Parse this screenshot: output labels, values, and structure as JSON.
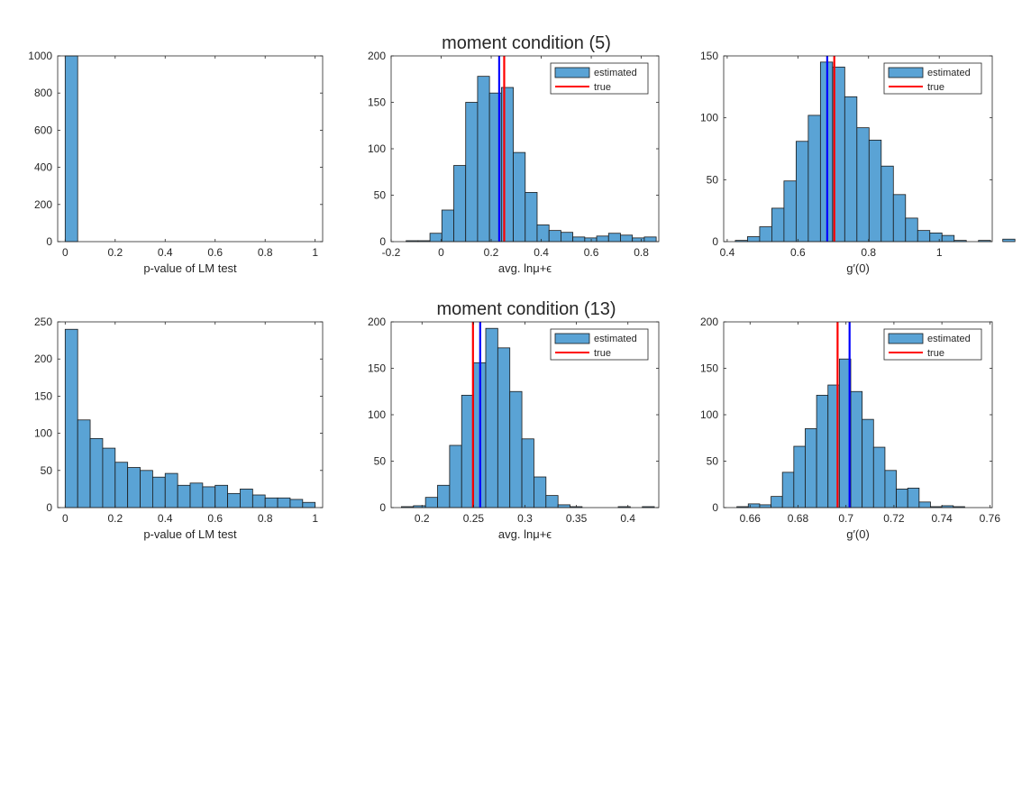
{
  "titles": [
    "moment condition (5)",
    "moment condition (13)"
  ],
  "legend": {
    "estimated_label": "estimated",
    "true_label": "true"
  },
  "colors": {
    "bar": "#5aa3d5",
    "bar_edge": "#1a1a1a",
    "true_line": "#ff0000",
    "mean_line": "#0000ff",
    "axis": "#262626"
  },
  "chart_data": [
    {
      "type": "bar",
      "row": 1,
      "col": 1,
      "title": "",
      "xlabel": "p-value of LM test",
      "ylabel": "",
      "xlim": [
        -0.03,
        1.03
      ],
      "ylim": [
        0,
        1000
      ],
      "xticks": [
        0,
        0.2,
        0.4,
        0.6,
        0.8,
        1
      ],
      "xtick_labels": [
        "0",
        "0.2",
        "0.4",
        "0.6",
        "0.8",
        "1"
      ],
      "yticks": [
        0,
        200,
        400,
        600,
        800,
        1000
      ],
      "ytick_labels": [
        "0",
        "200",
        "400",
        "600",
        "800",
        "1000"
      ],
      "bin_edges": [
        0,
        0.05
      ],
      "counts": [
        1000
      ],
      "legend": false
    },
    {
      "type": "bar",
      "row": 1,
      "col": 2,
      "title": "",
      "xlabel": "avg. lnμ+ϵ",
      "ylabel": "",
      "xlim": [
        -0.2,
        0.87
      ],
      "ylim": [
        0,
        200
      ],
      "xticks": [
        -0.2,
        0,
        0.2,
        0.4,
        0.6,
        0.8
      ],
      "xtick_labels": [
        "-0.2",
        "0",
        "0.2",
        "0.4",
        "0.6",
        "0.8"
      ],
      "yticks": [
        0,
        50,
        100,
        150,
        200
      ],
      "ytick_labels": [
        "0",
        "50",
        "100",
        "150",
        "200"
      ],
      "bin_start": -0.14,
      "bin_width": 0.0476,
      "counts": [
        1,
        1,
        9,
        34,
        82,
        150,
        178,
        160,
        166,
        96,
        53,
        18,
        12,
        10,
        5,
        4,
        6,
        9,
        7,
        4,
        5
      ],
      "true_value": 0.252,
      "mean_value": 0.232,
      "legend": true,
      "legend_position": "top-right"
    },
    {
      "type": "bar",
      "row": 1,
      "col": 3,
      "title": "",
      "xlabel": "g′(0)",
      "ylabel": "",
      "xlim": [
        0.39,
        1.15
      ],
      "ylim": [
        0,
        150
      ],
      "xticks": [
        0.4,
        0.6,
        0.8,
        1
      ],
      "xtick_labels": [
        "0.4",
        "0.6",
        "0.8",
        "1"
      ],
      "yticks": [
        0,
        50,
        100,
        150
      ],
      "ytick_labels": [
        "0",
        "50",
        "100",
        "150"
      ],
      "bin_start": 0.423,
      "bin_width": 0.0344,
      "counts": [
        1,
        4,
        12,
        27,
        49,
        81,
        102,
        145,
        141,
        117,
        92,
        82,
        61,
        38,
        19,
        9,
        7,
        5,
        1,
        0,
        1,
        0,
        2
      ],
      "true_value": 0.703,
      "mean_value": 0.683,
      "legend": true,
      "legend_position": "top-right"
    },
    {
      "type": "bar",
      "row": 2,
      "col": 1,
      "title": "",
      "xlabel": "p-value of LM test",
      "ylabel": "",
      "xlim": [
        -0.03,
        1.03
      ],
      "ylim": [
        0,
        250
      ],
      "xticks": [
        0,
        0.2,
        0.4,
        0.6,
        0.8,
        1
      ],
      "xtick_labels": [
        "0",
        "0.2",
        "0.4",
        "0.6",
        "0.8",
        "1"
      ],
      "yticks": [
        0,
        50,
        100,
        150,
        200,
        250
      ],
      "ytick_labels": [
        "0",
        "50",
        "100",
        "150",
        "200",
        "250"
      ],
      "bin_start": 0,
      "bin_width": 0.05,
      "counts": [
        240,
        118,
        93,
        80,
        61,
        54,
        50,
        41,
        46,
        30,
        33,
        28,
        30,
        19,
        25,
        17,
        13,
        13,
        11,
        7
      ],
      "legend": false
    },
    {
      "type": "bar",
      "row": 2,
      "col": 2,
      "title": "",
      "xlabel": "avg. lnμ+ϵ",
      "ylabel": "",
      "xlim": [
        0.17,
        0.43
      ],
      "ylim": [
        0,
        200
      ],
      "xticks": [
        0.2,
        0.25,
        0.3,
        0.35,
        0.4
      ],
      "xtick_labels": [
        "0.2",
        "0.25",
        "0.3",
        "0.35",
        "0.4"
      ],
      "yticks": [
        0,
        50,
        100,
        150,
        200
      ],
      "ytick_labels": [
        "0",
        "50",
        "100",
        "150",
        "200"
      ],
      "bin_start": 0.18,
      "bin_width": 0.0117,
      "counts": [
        1,
        2,
        11,
        24,
        67,
        121,
        156,
        193,
        172,
        125,
        74,
        33,
        13,
        3,
        1,
        0,
        0,
        0,
        1,
        0,
        1
      ],
      "true_value": 0.2495,
      "mean_value": 0.2565,
      "legend": true,
      "legend_position": "top-right"
    },
    {
      "type": "bar",
      "row": 2,
      "col": 3,
      "title": "",
      "xlabel": "g′(0)",
      "ylabel": "",
      "xlim": [
        0.649,
        0.761
      ],
      "ylim": [
        0,
        200
      ],
      "xticks": [
        0.66,
        0.68,
        0.7,
        0.72,
        0.74,
        0.76
      ],
      "xtick_labels": [
        "0.66",
        "0.68",
        "0.7",
        "0.72",
        "0.74",
        "0.76"
      ],
      "yticks": [
        0,
        50,
        100,
        150,
        200
      ],
      "ytick_labels": [
        "0",
        "50",
        "100",
        "150",
        "200"
      ],
      "bin_start": 0.6545,
      "bin_width": 0.00475,
      "counts": [
        1,
        4,
        3,
        12,
        38,
        66,
        85,
        121,
        132,
        160,
        125,
        95,
        65,
        40,
        20,
        21,
        6,
        1,
        2,
        1
      ],
      "true_value": 0.6965,
      "mean_value": 0.7015,
      "legend": true,
      "legend_position": "top-right"
    }
  ]
}
